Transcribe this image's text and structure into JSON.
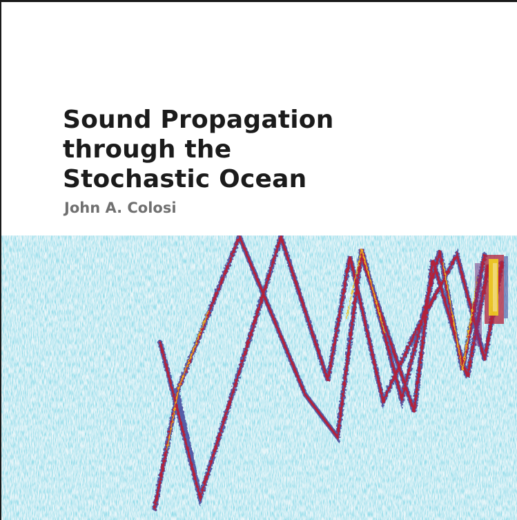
{
  "cover": {
    "title_lines": [
      "Sound Propagation",
      "through the",
      "Stochastic Ocean"
    ],
    "author": "John A. Colosi"
  },
  "colors": {
    "background": "#ffffff",
    "title": "#1b1b1b",
    "author": "#707070",
    "noise": "#8ecfdc",
    "ray_core": "#b3203a",
    "ray_edge": "#2b2f8f",
    "hot": "#f0d020"
  }
}
